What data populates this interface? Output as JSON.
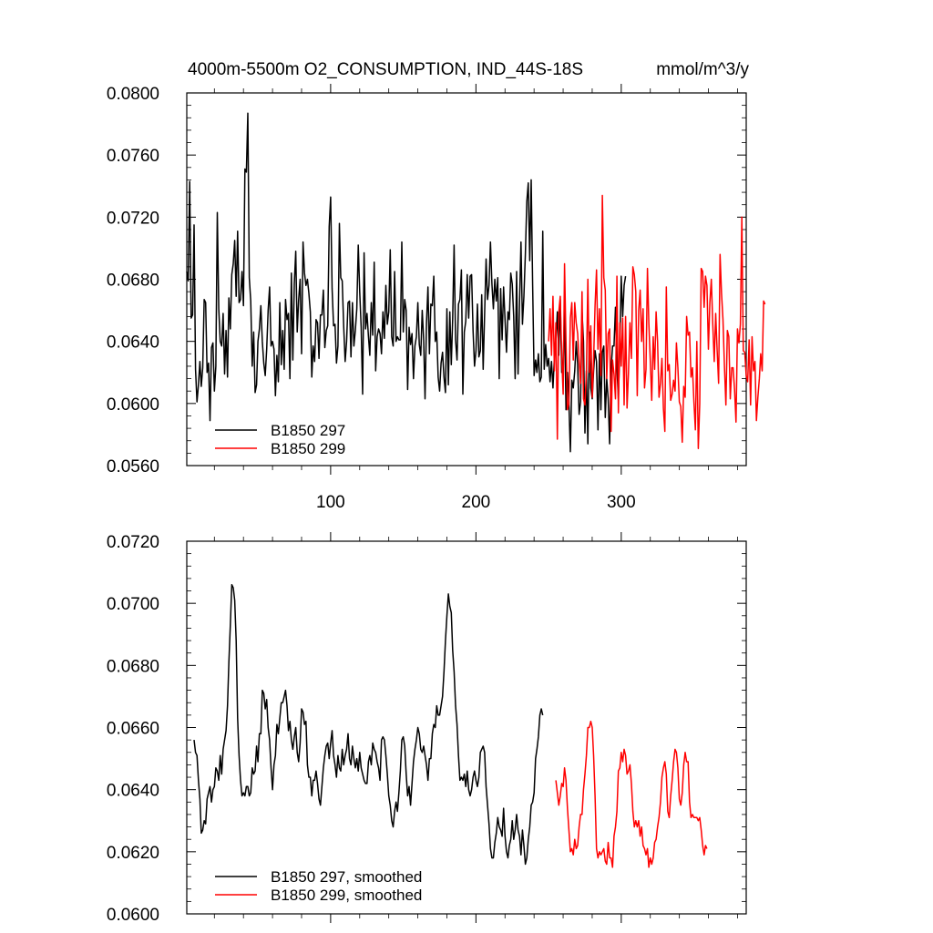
{
  "chart_data": [
    {
      "type": "line",
      "title": "4000m-5500m O2_CONSUMPTION, IND_44S-18S",
      "units": "mmol/m^3/y",
      "xlim": [
        1,
        386
      ],
      "ylim": [
        0.056,
        0.08
      ],
      "xticks": [
        100,
        200,
        300
      ],
      "yticks": [
        "0.0560",
        "0.0600",
        "0.0640",
        "0.0680",
        "0.0720",
        "0.0760",
        "0.0800"
      ],
      "grid": false,
      "legend_position": "bottom-left",
      "series": [
        {
          "name": "B1850 297",
          "color": "#000000",
          "x_start": 1,
          "values": [
            0.0685,
            0.0679,
            0.0743,
            0.0655,
            0.0657,
            0.0715,
            0.0622,
            0.0601,
            0.0612,
            0.0627,
            0.0611,
            0.0623,
            0.0667,
            0.0665,
            0.062,
            0.0626,
            0.0589,
            0.0636,
            0.0639,
            0.0608,
            0.0624,
            0.0723,
            0.0661,
            0.064,
            0.0637,
            0.0658,
            0.0619,
            0.0647,
            0.0617,
            0.0668,
            0.0648,
            0.0683,
            0.069,
            0.0705,
            0.0669,
            0.0711,
            0.0665,
            0.0667,
            0.0685,
            0.0663,
            0.0751,
            0.0749,
            0.0787,
            0.0681,
            0.0666,
            0.0624,
            0.0646,
            0.0607,
            0.0612,
            0.064,
            0.0648,
            0.0663,
            0.064,
            0.0626,
            0.0618,
            0.0635,
            0.066,
            0.0675,
            0.0637,
            0.064,
            0.0635,
            0.0605,
            0.0631,
            0.0614,
            0.0665,
            0.0625,
            0.0647,
            0.0622,
            0.0667,
            0.0654,
            0.0658,
            0.0616,
            0.0684,
            0.0628,
            0.0677,
            0.0698,
            0.0646,
            0.0667,
            0.068,
            0.0632,
            0.0704,
            0.0684,
            0.0676,
            0.068,
            0.0671,
            0.0659,
            0.0617,
            0.0637,
            0.0627,
            0.0654,
            0.0652,
            0.0629,
            0.0657,
            0.0657,
            0.0673,
            0.0636,
            0.0647,
            0.065,
            0.0714,
            0.0733,
            0.0674,
            0.065,
            0.0651,
            0.0626,
            0.0637,
            0.0716,
            0.0681,
            0.0679,
            0.065,
            0.0627,
            0.064,
            0.0665,
            0.0666,
            0.063,
            0.0665,
            0.0637,
            0.0647,
            0.0661,
            0.0702,
            0.0672,
            0.0649,
            0.0606,
            0.0697,
            0.0648,
            0.0658,
            0.0643,
            0.0631,
            0.0665,
            0.0644,
            0.0691,
            0.0621,
            0.0643,
            0.0648,
            0.0645,
            0.0632,
            0.0659,
            0.0642,
            0.0676,
            0.0651,
            0.0659,
            0.0699,
            0.0643,
            0.0637,
            0.0685,
            0.064,
            0.0643,
            0.0641,
            0.0641,
            0.0704,
            0.0646,
            0.0667,
            0.066,
            0.0609,
            0.0649,
            0.0638,
            0.0645,
            0.0616,
            0.0637,
            0.0643,
            0.0665,
            0.0638,
            0.0631,
            0.066,
            0.0641,
            0.0603,
            0.0652,
            0.0675,
            0.0632,
            0.0664,
            0.0663,
            0.0682,
            0.064,
            0.0646,
            0.0617,
            0.0608,
            0.0626,
            0.0633,
            0.0617,
            0.0607,
            0.0661,
            0.0612,
            0.0659,
            0.0625,
            0.0654,
            0.0702,
            0.0641,
            0.0628,
            0.0664,
            0.0667,
            0.0686,
            0.0606,
            0.0646,
            0.0653,
            0.0683,
            0.0655,
            0.0682,
            0.0683,
            0.0647,
            0.0624,
            0.0634,
            0.0664,
            0.063,
            0.0634,
            0.067,
            0.0622,
            0.0658,
            0.0693,
            0.0667,
            0.0676,
            0.0704,
            0.0677,
            0.0661,
            0.068,
            0.0666,
            0.0681,
            0.0616,
            0.0674,
            0.0641,
            0.0675,
            0.0654,
            0.0633,
            0.0659,
            0.0654,
            0.0684,
            0.0677,
            0.0656,
            0.0616,
            0.0685,
            0.0619,
            0.0665,
            0.0704,
            0.0651,
            0.0669,
            0.0696,
            0.073,
            0.0742,
            0.0692,
            0.0744,
            0.0676,
            0.0618,
            0.0628,
            0.062,
            0.0632,
            0.0614,
            0.0617,
            0.0711,
            0.0622,
            0.0638,
            0.0624,
            0.0629,
            0.0614,
            0.0627,
            0.061,
            0.063,
            0.064,
            0.0659,
            0.0631,
            0.0667,
            0.062,
            0.0627,
            0.0659,
            0.0596,
            0.062,
            0.06,
            0.0569,
            0.0615,
            0.061,
            0.0621,
            0.064,
            0.0625,
            0.0593,
            0.0601,
            0.0659,
            0.064,
            0.0581,
            0.0621,
            0.0574,
            0.0646,
            0.061,
            0.0603,
            0.0621,
            0.0634,
            0.0627,
            0.0583,
            0.0632,
            0.0596,
            0.0633,
            0.0637,
            0.0591,
            0.0616,
            0.0603,
            0.0574,
            0.0622,
            0.0637,
            0.0637,
            0.0662,
            0.0623,
            0.0603,
            0.0637,
            0.0682,
            0.0656,
            0.0676,
            0.0682
          ]
        },
        {
          "name": "B1850 299",
          "color": "#ff0000",
          "x_start": 250,
          "values": [
            0.064,
            0.0661,
            0.0631,
            0.0669,
            0.0621,
            0.0652,
            0.0577,
            0.0659,
            0.0669,
            0.063,
            0.0606,
            0.069,
            0.064,
            0.0596,
            0.06,
            0.0655,
            0.0665,
            0.0628,
            0.0665,
            0.0652,
            0.0645,
            0.0627,
            0.0613,
            0.0672,
            0.0603,
            0.0599,
            0.062,
            0.068,
            0.062,
            0.065,
            0.0604,
            0.0628,
            0.0663,
            0.0686,
            0.0635,
            0.0661,
            0.0618,
            0.0734,
            0.0681,
            0.0673,
            0.0616,
            0.0645,
            0.0648,
            0.0582,
            0.0628,
            0.0619,
            0.0603,
            0.0682,
            0.0594,
            0.0652,
            0.0624,
            0.0655,
            0.0599,
            0.0656,
            0.0597,
            0.062,
            0.0652,
            0.0629,
            0.0688,
            0.0683,
            0.0672,
            0.0605,
            0.066,
            0.0673,
            0.064,
            0.0661,
            0.061,
            0.0622,
            0.0687,
            0.0652,
            0.0628,
            0.0602,
            0.0643,
            0.0622,
            0.0659,
            0.064,
            0.0604,
            0.0613,
            0.0629,
            0.0597,
            0.0582,
            0.0675,
            0.0621,
            0.0625,
            0.0602,
            0.0606,
            0.0615,
            0.0608,
            0.0639,
            0.0623,
            0.0601,
            0.0598,
            0.0575,
            0.0611,
            0.0604,
            0.0656,
            0.0644,
            0.0646,
            0.0617,
            0.0623,
            0.0601,
            0.0583,
            0.064,
            0.0571,
            0.06,
            0.0687,
            0.0685,
            0.0662,
            0.0682,
            0.0676,
            0.0635,
            0.0665,
            0.068,
            0.0651,
            0.0627,
            0.0658,
            0.0634,
            0.0613,
            0.0696,
            0.0671,
            0.0654,
            0.0624,
            0.0599,
            0.0647,
            0.0643,
            0.0603,
            0.0623,
            0.0623,
            0.0609,
            0.0588,
            0.0648,
            0.0639,
            0.0651,
            0.072,
            0.0634,
            0.0633,
            0.0618,
            0.0614,
            0.0641,
            0.0599,
            0.0643,
            0.0621,
            0.0627,
            0.0589,
            0.0604,
            0.0616,
            0.0632,
            0.0621,
            0.0666,
            0.0664
          ]
        }
      ]
    },
    {
      "type": "line",
      "xlim": [
        1,
        386
      ],
      "ylim": [
        0.06,
        0.072
      ],
      "xticks": [
        100,
        200,
        300
      ],
      "yticks": [
        "0.0600",
        "0.0620",
        "0.0640",
        "0.0660",
        "0.0680",
        "0.0700",
        "0.0720"
      ],
      "grid": false,
      "legend_position": "bottom-left",
      "series": [
        {
          "name": "B1850 297, smoothed",
          "color": "#000000",
          "x_start": 6,
          "values": [
            0.0656,
            0.0652,
            0.0651,
            0.0643,
            0.0637,
            0.0626,
            0.0627,
            0.063,
            0.0629,
            0.0637,
            0.0639,
            0.0641,
            0.0636,
            0.064,
            0.0641,
            0.0647,
            0.0646,
            0.0643,
            0.0651,
            0.0645,
            0.0653,
            0.0656,
            0.0659,
            0.0667,
            0.0681,
            0.0693,
            0.0706,
            0.0705,
            0.0701,
            0.0688,
            0.0663,
            0.0651,
            0.0643,
            0.0638,
            0.0639,
            0.0638,
            0.0641,
            0.0641,
            0.0638,
            0.0639,
            0.0647,
            0.0645,
            0.0646,
            0.0654,
            0.0649,
            0.0658,
            0.0658,
            0.0672,
            0.0671,
            0.0666,
            0.0669,
            0.066,
            0.0656,
            0.0647,
            0.064,
            0.0648,
            0.0651,
            0.0661,
            0.0658,
            0.0663,
            0.0668,
            0.0668,
            0.067,
            0.0672,
            0.0667,
            0.0659,
            0.0662,
            0.0656,
            0.0653,
            0.0657,
            0.066,
            0.0652,
            0.0649,
            0.0655,
            0.0666,
            0.0665,
            0.0661,
            0.0662,
            0.0648,
            0.0644,
            0.0644,
            0.0638,
            0.0643,
            0.0643,
            0.0646,
            0.0642,
            0.0637,
            0.0635,
            0.0641,
            0.0647,
            0.0651,
            0.0654,
            0.0655,
            0.065,
            0.0655,
            0.0659,
            0.0651,
            0.0648,
            0.0644,
            0.0651,
            0.0647,
            0.0646,
            0.0653,
            0.0648,
            0.0651,
            0.0653,
            0.0658,
            0.065,
            0.0648,
            0.0654,
            0.065,
            0.0647,
            0.065,
            0.0646,
            0.0652,
            0.0647,
            0.0645,
            0.0643,
            0.0642,
            0.0642,
            0.0649,
            0.0651,
            0.0648,
            0.0655,
            0.0653,
            0.0652,
            0.0649,
            0.0647,
            0.0643,
            0.0656,
            0.0657,
            0.0656,
            0.0651,
            0.0645,
            0.0638,
            0.0635,
            0.063,
            0.0628,
            0.0633,
            0.0636,
            0.0633,
            0.0639,
            0.0646,
            0.0656,
            0.0657,
            0.0654,
            0.0645,
            0.0638,
            0.0641,
            0.0635,
            0.0642,
            0.0649,
            0.0653,
            0.0656,
            0.066,
            0.0658,
            0.0653,
            0.0652,
            0.0654,
            0.0651,
            0.0648,
            0.0643,
            0.065,
            0.065,
            0.0658,
            0.0661,
            0.066,
            0.0667,
            0.0664,
            0.0664,
            0.0667,
            0.067,
            0.0678,
            0.0688,
            0.0696,
            0.0703,
            0.0699,
            0.0697,
            0.0685,
            0.0678,
            0.0667,
            0.0661,
            0.0651,
            0.0643,
            0.0644,
            0.0643,
            0.0645,
            0.0641,
            0.0646,
            0.064,
            0.0638,
            0.064,
            0.0644,
            0.0646,
            0.0643,
            0.0641,
            0.0644,
            0.0652,
            0.0653,
            0.0654,
            0.0652,
            0.0641,
            0.0635,
            0.0629,
            0.0621,
            0.0618,
            0.0618,
            0.0623,
            0.0626,
            0.0631,
            0.0628,
            0.0627,
            0.0625,
            0.0634,
            0.0625,
            0.062,
            0.0618,
            0.0622,
            0.0624,
            0.063,
            0.0624,
            0.0627,
            0.0632,
            0.0627,
            0.0625,
            0.0619,
            0.0627,
            0.0622,
            0.0616,
            0.0618,
            0.0624,
            0.0628,
            0.0635,
            0.0636,
            0.0639,
            0.065,
            0.0653,
            0.0657,
            0.0664,
            0.0666,
            0.0664
          ]
        },
        {
          "name": "B1850 299, smoothed",
          "color": "#ff0000",
          "x_start": 255,
          "values": [
            0.0643,
            0.0639,
            0.0635,
            0.0638,
            0.0642,
            0.0641,
            0.0647,
            0.0643,
            0.0634,
            0.0627,
            0.062,
            0.0621,
            0.0619,
            0.0624,
            0.0621,
            0.0622,
            0.0628,
            0.0632,
            0.0632,
            0.064,
            0.0645,
            0.0651,
            0.066,
            0.066,
            0.0662,
            0.066,
            0.0651,
            0.0638,
            0.0621,
            0.0618,
            0.062,
            0.0619,
            0.062,
            0.0621,
            0.0617,
            0.0616,
            0.0623,
            0.0618,
            0.0618,
            0.0615,
            0.0625,
            0.0628,
            0.0633,
            0.0646,
            0.0647,
            0.0652,
            0.0649,
            0.0653,
            0.0651,
            0.0645,
            0.0646,
            0.0648,
            0.0642,
            0.0633,
            0.0628,
            0.063,
            0.0628,
            0.063,
            0.0625,
            0.0628,
            0.0622,
            0.0621,
            0.0619,
            0.0621,
            0.0615,
            0.0618,
            0.0616,
            0.0618,
            0.0623,
            0.0624,
            0.0628,
            0.0631,
            0.0636,
            0.0644,
            0.0647,
            0.0649,
            0.0645,
            0.0633,
            0.0631,
            0.0638,
            0.0643,
            0.0649,
            0.0653,
            0.0652,
            0.0647,
            0.0637,
            0.0635,
            0.0639,
            0.0648,
            0.0652,
            0.0649,
            0.0649,
            0.0636,
            0.0631,
            0.0632,
            0.0631,
            0.0631,
            0.0631,
            0.063,
            0.0631,
            0.0627,
            0.0622,
            0.0619,
            0.0622,
            0.0621
          ]
        }
      ]
    }
  ]
}
